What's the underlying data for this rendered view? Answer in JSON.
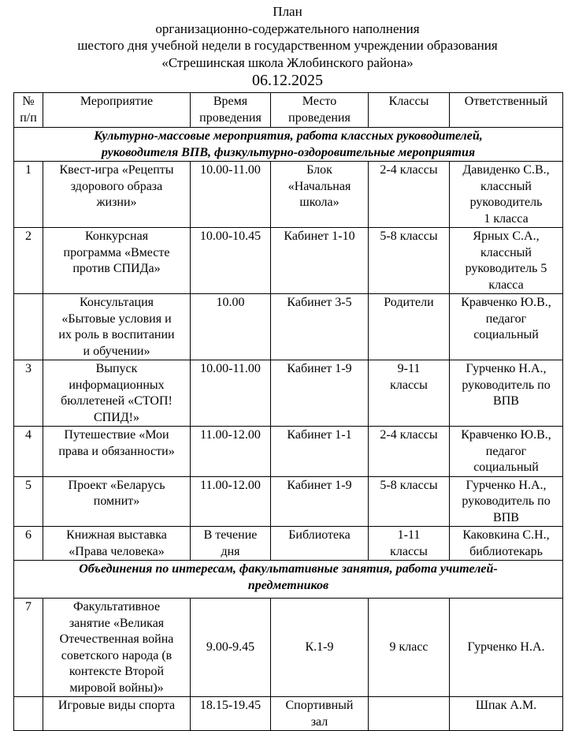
{
  "title": {
    "lines": [
      "План",
      "организационно-содержательного наполнения",
      "шестого дня учебной недели в государственном учреждении образования",
      "«Стрешинская школа Жлобинского района»"
    ],
    "date": "06.12.2025"
  },
  "table": {
    "headers": [
      "№\nп/п",
      "Мероприятие",
      "Время\nпроведения",
      "Место\nпроведения",
      "Классы",
      "Ответственный"
    ],
    "section1": "Культурно-массовые мероприятия, работа классных руководителей,\nруководителя ВПВ, физкультурно-оздоровительные мероприятия",
    "rows1": [
      [
        "1",
        "Квест-игра «Рецепты\nздорового образа\nжизни»",
        "10.00-11.00",
        "Блок\n«Начальная\nшкола»",
        "2-4 классы",
        "Давиденко С.В.,\nклассный\nруководитель\n1 класса"
      ],
      [
        "2",
        "Конкурсная\nпрограмма «Вместе\nпротив СПИДа»",
        "10.00-10.45",
        "Кабинет 1-10",
        "5-8 классы",
        "Ярных С.А.,\nклассный\nруководитель 5\nкласса"
      ],
      [
        "",
        "Консультация\n«Бытовые условия и\nих роль в воспитании\nи обучении»",
        "10.00",
        "Кабинет 3-5",
        "Родители",
        "Кравченко Ю.В.,\nпедагог\nсоциальный"
      ],
      [
        "3",
        "Выпуск\nинформационных\nбюллетеней «СТОП!\nСПИД!»",
        "10.00-11.00",
        "Кабинет 1-9",
        "9-11\nклассы",
        "Гурченко Н.А.,\nруководитель по\nВПВ"
      ],
      [
        "4",
        "Путешествие «Мои\nправа и обязанности»",
        "11.00-12.00",
        "Кабинет 1-1",
        "2-4 классы",
        "Кравченко Ю.В.,\nпедагог\nсоциальный"
      ],
      [
        "5",
        "Проект «Беларусь\nпомнит»",
        "11.00-12.00",
        "Кабинет 1-9",
        "5-8 классы",
        "Гурченко Н.А.,\nруководитель по\nВПВ"
      ],
      [
        "6",
        "Книжная выставка\n«Права человека»",
        "В течение\nдня",
        "Библиотека",
        "1-11\nклассы",
        "Каковкина С.Н.,\nбиблиотекарь"
      ]
    ],
    "section2": "Объединения по интересам, факультативные занятия, работа учителей-\nпредметников",
    "rows2": [
      [
        "7",
        "Факультативное\nзанятие «Великая\nОтечественная война\nсоветского народа (в\nконтексте Второй\nмировой войны)»",
        "9.00-9.45",
        "К.1-9",
        "9 класс",
        "Гурченко Н.А."
      ],
      [
        "",
        "Игровые виды спорта",
        "18.15-19.45",
        "Спортивный\nзал",
        "",
        "Шпак А.М."
      ]
    ]
  }
}
